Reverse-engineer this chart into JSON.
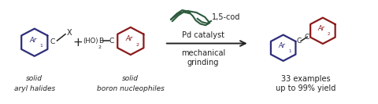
{
  "bg_color": "#ffffff",
  "dark_blue": "#2d2d7a",
  "dark_red": "#8b1a1a",
  "dark_green": "#2d5a3d",
  "text_color": "#222222",
  "fig_width": 4.8,
  "fig_height": 1.33,
  "dpi": 100,
  "label1_line1": "solid",
  "label1_line2": "aryl halides",
  "label2_line1": "solid",
  "label2_line2": "boron nucleophiles",
  "condition1": "1,5-cod",
  "condition2": "Pd catalyst",
  "condition3": "mechanical",
  "condition4": "grinding",
  "result1": "33 examples",
  "result2": "up to 99% yield"
}
